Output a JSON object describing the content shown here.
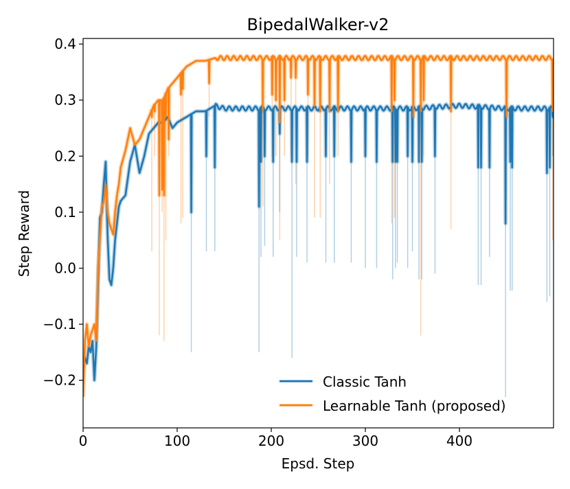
{
  "chart_data": {
    "type": "line",
    "title": "BipedalWalker-v2",
    "xlabel": "Epsd. Step",
    "ylabel": "Step Reward",
    "xlim": [
      0,
      500
    ],
    "ylim": [
      -0.285,
      0.41
    ],
    "x_ticks": [
      0,
      100,
      200,
      300,
      400
    ],
    "x_tick_labels": [
      "0",
      "100",
      "200",
      "300",
      "400"
    ],
    "y_ticks": [
      -0.2,
      -0.1,
      0.0,
      0.1,
      0.2,
      0.3,
      0.4
    ],
    "y_tick_labels": [
      "−0.2",
      "−0.1",
      "0.0",
      "0.1",
      "0.2",
      "0.3",
      "0.4"
    ],
    "legend": {
      "placement": "lower-right"
    },
    "series": [
      {
        "name": "Classic Tanh",
        "color": "#1f77b4",
        "x": [
          0,
          2,
          4,
          6,
          8,
          10,
          12,
          14,
          16,
          18,
          20,
          22,
          24,
          26,
          28,
          30,
          32,
          34,
          36,
          38,
          40,
          45,
          50,
          55,
          60,
          65,
          70,
          75,
          80,
          85,
          90,
          95,
          100,
          110,
          120,
          130,
          140,
          150,
          170,
          200,
          250,
          300,
          350,
          400,
          450,
          500
        ],
        "values": [
          -0.18,
          -0.16,
          -0.17,
          -0.14,
          -0.15,
          -0.13,
          -0.2,
          -0.14,
          -0.02,
          0.09,
          0.1,
          0.15,
          0.19,
          0.06,
          -0.02,
          -0.03,
          0.0,
          0.05,
          0.08,
          0.11,
          0.12,
          0.13,
          0.19,
          0.22,
          0.17,
          0.2,
          0.24,
          0.25,
          0.26,
          0.26,
          0.27,
          0.25,
          0.26,
          0.27,
          0.28,
          0.28,
          0.29,
          0.285,
          0.285,
          0.285,
          0.285,
          0.285,
          0.285,
          0.29,
          0.285,
          0.285
        ],
        "dips": [
          {
            "x": 115,
            "bold": 0.1,
            "faint": -0.15
          },
          {
            "x": 131,
            "bold": 0.2,
            "faint": 0.03
          },
          {
            "x": 140,
            "bold": 0.18,
            "faint": 0.03
          },
          {
            "x": 187,
            "bold": 0.11,
            "faint": -0.15
          },
          {
            "x": 189,
            "bold": 0.19,
            "faint": 0.02
          },
          {
            "x": 193,
            "bold": 0.2,
            "faint": 0.04
          },
          {
            "x": 202,
            "bold": 0.19,
            "faint": 0.02
          },
          {
            "x": 209,
            "bold": 0.24,
            "faint": 0.1
          },
          {
            "x": 222,
            "bold": 0.19,
            "faint": -0.16
          },
          {
            "x": 227,
            "bold": 0.19,
            "faint": 0.02
          },
          {
            "x": 238,
            "bold": 0.19,
            "faint": 0.01
          },
          {
            "x": 258,
            "bold": 0.2,
            "faint": 0.01
          },
          {
            "x": 267,
            "bold": 0.2,
            "faint": 0.01
          },
          {
            "x": 285,
            "bold": 0.19,
            "faint": 0.01
          },
          {
            "x": 300,
            "bold": 0.2,
            "faint": 0.0
          },
          {
            "x": 312,
            "bold": 0.19,
            "faint": 0.0
          },
          {
            "x": 329,
            "bold": 0.19,
            "faint": -0.02
          },
          {
            "x": 332,
            "bold": 0.19,
            "faint": 0.0
          },
          {
            "x": 334,
            "bold": 0.19,
            "faint": 0.01
          },
          {
            "x": 345,
            "bold": 0.2,
            "faint": 0.0
          },
          {
            "x": 350,
            "bold": 0.19,
            "faint": 0.03
          },
          {
            "x": 357,
            "bold": 0.19,
            "faint": -0.02
          },
          {
            "x": 360,
            "bold": 0.19,
            "faint": -0.02
          },
          {
            "x": 374,
            "bold": 0.2,
            "faint": -0.01
          },
          {
            "x": 420,
            "bold": 0.18,
            "faint": -0.03
          },
          {
            "x": 423,
            "bold": 0.18,
            "faint": -0.03
          },
          {
            "x": 432,
            "bold": 0.18,
            "faint": 0.02
          },
          {
            "x": 449,
            "bold": 0.08,
            "faint": -0.23
          },
          {
            "x": 454,
            "bold": 0.19,
            "faint": -0.04
          },
          {
            "x": 456,
            "bold": 0.18,
            "faint": -0.04
          },
          {
            "x": 493,
            "bold": 0.17,
            "faint": -0.06
          },
          {
            "x": 496,
            "bold": 0.18,
            "faint": -0.05
          },
          {
            "x": 499,
            "bold": 0.27,
            "faint": 0.2
          }
        ]
      },
      {
        "name": "Learnable Tanh (proposed)",
        "color": "#ff7f0e",
        "x": [
          0,
          2,
          4,
          6,
          8,
          10,
          12,
          14,
          16,
          18,
          20,
          22,
          24,
          26,
          28,
          30,
          32,
          34,
          36,
          38,
          40,
          45,
          50,
          55,
          60,
          65,
          70,
          75,
          80,
          85,
          90,
          95,
          100,
          110,
          120,
          130,
          140,
          150,
          170,
          200,
          250,
          300,
          350,
          400,
          450,
          500
        ],
        "values": [
          -0.23,
          -0.13,
          -0.1,
          -0.14,
          -0.12,
          -0.11,
          -0.1,
          -0.13,
          0.0,
          0.06,
          0.11,
          0.12,
          0.15,
          0.1,
          0.08,
          0.07,
          0.06,
          0.1,
          0.13,
          0.15,
          0.18,
          0.21,
          0.25,
          0.22,
          0.23,
          0.25,
          0.27,
          0.29,
          0.3,
          0.3,
          0.32,
          0.33,
          0.34,
          0.36,
          0.37,
          0.37,
          0.375,
          0.375,
          0.375,
          0.375,
          0.375,
          0.375,
          0.375,
          0.375,
          0.375,
          0.375
        ],
        "dips": [
          {
            "x": 73,
            "bold": 0.27,
            "faint": 0.03
          },
          {
            "x": 76,
            "bold": 0.28,
            "faint": 0.2
          },
          {
            "x": 81,
            "bold": 0.13,
            "faint": -0.12
          },
          {
            "x": 84,
            "bold": 0.14,
            "faint": 0.1
          },
          {
            "x": 86,
            "bold": 0.13,
            "faint": -0.13
          },
          {
            "x": 88,
            "bold": 0.27,
            "faint": 0.05
          },
          {
            "x": 91,
            "bold": 0.23,
            "faint": 0.2
          },
          {
            "x": 104,
            "bold": 0.31,
            "faint": 0.08
          },
          {
            "x": 106,
            "bold": 0.32,
            "faint": 0.09
          },
          {
            "x": 134,
            "bold": 0.33,
            "faint": 0.27
          },
          {
            "x": 191,
            "bold": 0.28,
            "faint": 0.11
          },
          {
            "x": 201,
            "bold": 0.31,
            "faint": 0.2
          },
          {
            "x": 205,
            "bold": 0.3,
            "faint": 0.2
          },
          {
            "x": 209,
            "bold": 0.26,
            "faint": 0.05
          },
          {
            "x": 214,
            "bold": 0.3,
            "faint": 0.2
          },
          {
            "x": 221,
            "bold": 0.34,
            "faint": 0.2
          },
          {
            "x": 226,
            "bold": 0.34,
            "faint": 0.15
          },
          {
            "x": 239,
            "bold": 0.31,
            "faint": 0.2
          },
          {
            "x": 246,
            "bold": 0.29,
            "faint": 0.09
          },
          {
            "x": 252,
            "bold": 0.28,
            "faint": 0.09
          },
          {
            "x": 262,
            "bold": 0.28,
            "faint": 0.15
          },
          {
            "x": 271,
            "bold": 0.28,
            "faint": 0.2
          },
          {
            "x": 328,
            "bold": 0.28,
            "faint": 0.08
          },
          {
            "x": 331,
            "bold": 0.3,
            "faint": 0.09
          },
          {
            "x": 351,
            "bold": 0.27,
            "faint": 0.2
          },
          {
            "x": 359,
            "bold": 0.28,
            "faint": -0.12
          },
          {
            "x": 362,
            "bold": 0.3,
            "faint": 0.2
          },
          {
            "x": 391,
            "bold": 0.28,
            "faint": 0.07
          },
          {
            "x": 450,
            "bold": 0.27,
            "faint": 0.2
          },
          {
            "x": 499,
            "bold": 0.28,
            "faint": 0.05
          }
        ]
      }
    ]
  }
}
